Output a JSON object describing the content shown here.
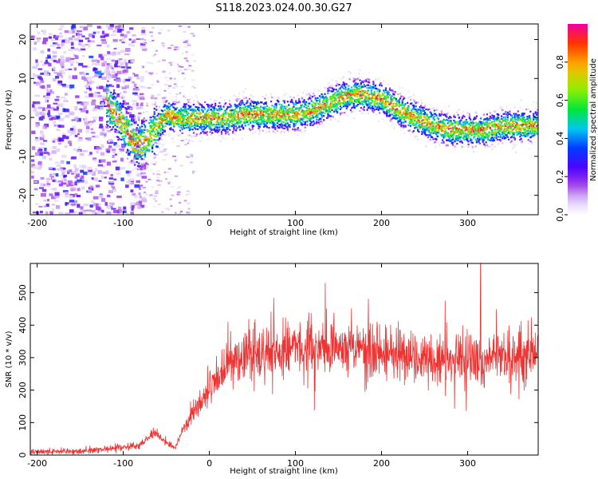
{
  "title": "S118.2023.024.00.30.G27",
  "chart_data": [
    {
      "type": "heatmap",
      "xlabel": "Height of straight line (km)",
      "ylabel": "Frequency (Hz)",
      "xlim": [
        -208,
        382
      ],
      "ylim": [
        -25,
        24
      ],
      "xticks": [
        -200,
        -100,
        0,
        100,
        200,
        300
      ],
      "yticks": [
        -20,
        -10,
        0,
        10,
        20
      ],
      "colorbar": {
        "label": "Normalized spectral amplitude",
        "range": [
          0.0,
          1.0
        ],
        "ticks": [
          0.0,
          0.2,
          0.4,
          0.6,
          0.8
        ]
      },
      "ridge_frequency_hz": {
        "x": [
          -120,
          -105,
          -95,
          -85,
          -75,
          -70,
          -60,
          -50,
          -40,
          -20,
          0,
          20,
          40,
          60,
          80,
          100,
          120,
          140,
          160,
          180,
          200,
          220,
          240,
          260,
          280,
          300,
          320,
          340,
          360,
          382
        ],
        "y": [
          4,
          0,
          -4,
          -7,
          -6,
          -5,
          -2,
          1,
          0,
          0,
          0,
          0,
          1,
          1,
          1,
          1,
          2,
          4,
          6,
          6,
          5,
          2,
          0,
          -2,
          -3,
          -3,
          -3,
          -2,
          -2,
          -2
        ]
      },
      "grid": false,
      "legend": "colorbar-right"
    },
    {
      "type": "line",
      "xlabel": "Height of straight line (km)",
      "ylabel": "SNR (10 * v/v)",
      "xlim": [
        -208,
        382
      ],
      "ylim": [
        0,
        590
      ],
      "xticks": [
        -200,
        -100,
        0,
        100,
        200,
        300
      ],
      "yticks": [
        0,
        100,
        200,
        300,
        400,
        500
      ],
      "color": "#ee3333",
      "trend": {
        "x": [
          -208,
          -150,
          -120,
          -80,
          -65,
          -50,
          -40,
          -30,
          -10,
          10,
          30,
          60,
          100,
          150,
          200,
          250,
          300,
          340,
          382
        ],
        "y": [
          10,
          12,
          18,
          30,
          70,
          40,
          20,
          80,
          160,
          240,
          300,
          320,
          335,
          330,
          320,
          300,
          290,
          300,
          310
        ]
      },
      "peak": {
        "x": 315,
        "y": 590
      },
      "grid": false
    }
  ]
}
